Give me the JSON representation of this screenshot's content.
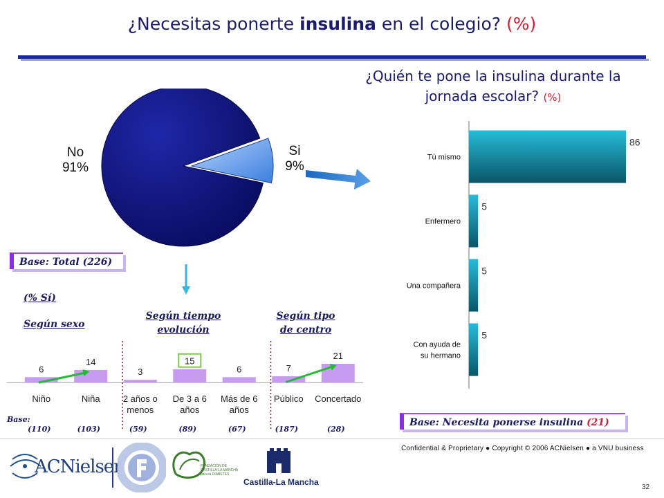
{
  "title": {
    "before": "¿Necesitas ponerte ",
    "highlight": "insulina",
    "after": " en el colegio? ",
    "pct": "(%)"
  },
  "subtitle": {
    "line1": "¿Quién te pone la insulina durante la",
    "line2": "jornada escolar? ",
    "pct": "(%)"
  },
  "bases": {
    "total": "Base: Total (226)",
    "needs_label": "Base: Necesita ponerse insulina ",
    "needs_n": "(21)"
  },
  "breakdown": {
    "pct_si": "(% Sí)",
    "sexo": "Según sexo",
    "tiempo_line1": "Según tiempo",
    "tiempo_line2": "evolución",
    "centro_line1": "Según tipo",
    "centro_line2": "de centro",
    "base_label": "Base:"
  },
  "colors": {
    "pie_no": "#0b0f7a",
    "pie_si": "#6fa8f0",
    "vbar": "#c79cf0",
    "hbar_top": "#24b4d2",
    "hbar_bottom": "#0a5f72",
    "arrow_green": "#22bb33",
    "divider": "#8a1a3a",
    "highlight_box": "#7ccc44"
  },
  "chart_data": [
    {
      "type": "pie",
      "slices": [
        {
          "label": "No",
          "value": 91,
          "value_text": "91%"
        },
        {
          "label": "Si",
          "value": 9,
          "value_text": "9%"
        }
      ]
    },
    {
      "type": "bar",
      "categories": [
        [
          "Niño"
        ],
        [
          "Niña"
        ],
        [
          "2 años o",
          "menos"
        ],
        [
          "De 3 a 6",
          "años"
        ],
        [
          "Más de 6",
          "años"
        ],
        [
          "Público"
        ],
        [
          "Concertado"
        ]
      ],
      "values": [
        6,
        14,
        3,
        15,
        6,
        7,
        21
      ],
      "bases": [
        "(110)",
        "(103)",
        "(59)",
        "(89)",
        "(67)",
        "(187)",
        "(28)"
      ],
      "highlighted_index": 3
    },
    {
      "type": "bar",
      "orientation": "horizontal",
      "categories": [
        [
          "Tú mismo"
        ],
        [
          "Enfermero"
        ],
        [
          "Una compañera"
        ],
        [
          "Con ayuda de",
          "su hermano"
        ]
      ],
      "values": [
        86,
        5,
        5,
        5
      ]
    }
  ],
  "footer": {
    "confidential": "Confidential & Proprietary ● Copyright © 2006 ACNielsen ● a VNU business",
    "page_number": "32",
    "logos": {
      "acnielsen": "ACNielsen",
      "fundacion_diabetes_ring": "FUNDACION PARA LA DIABETES",
      "fundacion_clm_line1": "FUNDACIÓN DE",
      "fundacion_clm_line2": "CASTILLA-LA MANCHA",
      "fundacion_clm_line3": "para la DIABETES",
      "castilla": "Castilla-La Mancha"
    }
  }
}
